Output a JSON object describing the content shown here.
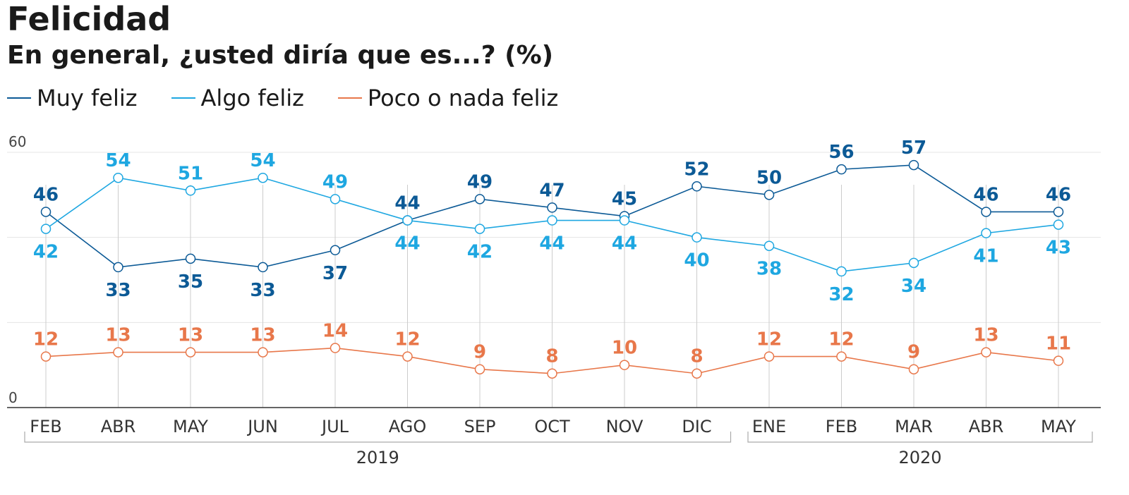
{
  "title": "Felicidad",
  "subtitle": "En general, ¿usted diría que es...? (%)",
  "colors": {
    "muy": "#0c5a96",
    "algo": "#1ea7e1",
    "poco": "#e8774a",
    "grid": "#e5e5e5",
    "axis": "#333333"
  },
  "chart_data": {
    "type": "line",
    "title": "Felicidad",
    "subtitle": "En general, ¿usted diría que es...? (%)",
    "categories": [
      "FEB",
      "ABR",
      "MAY",
      "JUN",
      "JUL",
      "AGO",
      "SEP",
      "OCT",
      "NOV",
      "DIC",
      "ENE",
      "FEB",
      "MAR",
      "ABR",
      "MAY"
    ],
    "years": [
      {
        "label": "2019",
        "from": 0,
        "to": 9
      },
      {
        "label": "2020",
        "from": 10,
        "to": 14
      }
    ],
    "ylim": [
      0,
      60
    ],
    "y_ticks": [
      "0",
      "60"
    ],
    "grid": true,
    "legend_position": "top-left",
    "series": [
      {
        "key": "muy",
        "name": "Muy feliz",
        "values": [
          46,
          33,
          35,
          33,
          37,
          44,
          49,
          47,
          45,
          52,
          50,
          56,
          57,
          46,
          46
        ]
      },
      {
        "key": "algo",
        "name": "Algo feliz",
        "values": [
          42,
          54,
          51,
          54,
          49,
          44,
          42,
          44,
          44,
          40,
          38,
          32,
          34,
          41,
          43
        ]
      },
      {
        "key": "poco",
        "name": "Poco o nada feliz",
        "values": [
          12,
          13,
          13,
          13,
          14,
          12,
          9,
          8,
          10,
          8,
          12,
          12,
          9,
          13,
          11
        ]
      }
    ]
  }
}
